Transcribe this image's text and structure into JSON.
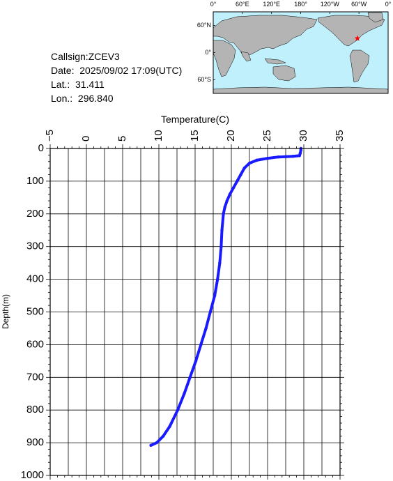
{
  "station": {
    "callsign": "Callsign:ZCEV3",
    "date": "Date:  2025/09/02 17:09(UTC)",
    "lat": "Lat.:  31.411",
    "lon": "Lon.:  296.840"
  },
  "map": {
    "lon_labels": [
      "0°",
      "60°E",
      "120°E",
      "180°",
      "120°W",
      "60°W",
      "0°"
    ],
    "lat_labels": [
      "60°N",
      "0°",
      "60°S"
    ],
    "marker_lon": 296.84,
    "marker_lat": 31.411,
    "colors": {
      "ocean": "#bff0fb",
      "land": "#b4b4b4",
      "marker": "#ff0000"
    }
  },
  "chart_data": {
    "type": "line",
    "title": "",
    "xlabel": "Temperature(C)",
    "ylabel": "Depth(m)",
    "xlim": [
      -5,
      35
    ],
    "ylim": [
      1000,
      0
    ],
    "x_ticks": [
      -5,
      0,
      5,
      10,
      15,
      20,
      25,
      30,
      35
    ],
    "y_ticks": [
      0,
      100,
      200,
      300,
      400,
      500,
      600,
      700,
      800,
      900,
      1000
    ],
    "x_tick_labels": [
      "−5",
      "0",
      "5",
      "10",
      "15",
      "20",
      "25",
      "30",
      "35"
    ],
    "y_tick_labels": [
      "0",
      "100",
      "200",
      "300",
      "400",
      "500",
      "600",
      "700",
      "800",
      "900",
      "1000"
    ],
    "grid": true,
    "series": [
      {
        "color": "#1a1aff",
        "points": [
          [
            29.6,
            0
          ],
          [
            29.6,
            5
          ],
          [
            29.5,
            15
          ],
          [
            29.4,
            22
          ],
          [
            28.5,
            24
          ],
          [
            27.5,
            25
          ],
          [
            26.5,
            26
          ],
          [
            25.0,
            30
          ],
          [
            23.5,
            36
          ],
          [
            22.5,
            45
          ],
          [
            21.8,
            60
          ],
          [
            21.3,
            80
          ],
          [
            20.8,
            100
          ],
          [
            20.3,
            120
          ],
          [
            19.8,
            140
          ],
          [
            19.4,
            160
          ],
          [
            19.1,
            180
          ],
          [
            18.9,
            200
          ],
          [
            18.7,
            250
          ],
          [
            18.6,
            300
          ],
          [
            18.4,
            350
          ],
          [
            18.1,
            400
          ],
          [
            17.7,
            450
          ],
          [
            17.1,
            500
          ],
          [
            16.5,
            550
          ],
          [
            15.8,
            600
          ],
          [
            15.1,
            650
          ],
          [
            14.3,
            700
          ],
          [
            13.5,
            750
          ],
          [
            12.6,
            800
          ],
          [
            11.5,
            850
          ],
          [
            10.6,
            880
          ],
          [
            9.7,
            900
          ],
          [
            8.9,
            908
          ]
        ]
      }
    ]
  }
}
